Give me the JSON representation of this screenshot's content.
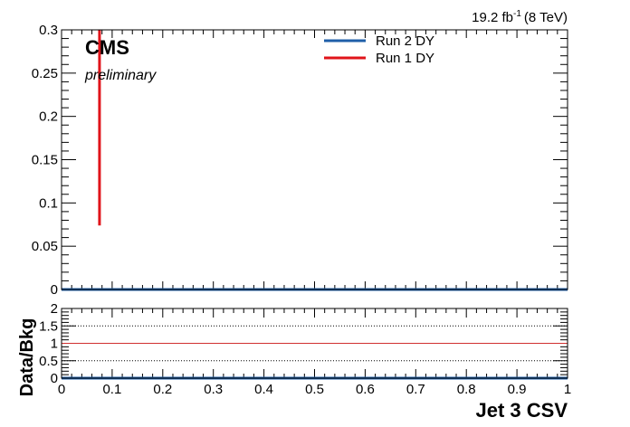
{
  "header": {
    "lumi_prefix": "19.2 fb",
    "lumi_exp": "-1",
    "lumi_suffix": "(8 TeV)"
  },
  "chart_data": [
    {
      "type": "line",
      "panel": "main",
      "experiment_label": "CMS",
      "status_label": "preliminary",
      "xlim": [
        0,
        1
      ],
      "ylim": [
        0,
        0.3
      ],
      "yticks": [
        0,
        0.05,
        0.1,
        0.15,
        0.2,
        0.25,
        0.3
      ],
      "ytick_labels": [
        "0",
        "0.05",
        "0.1",
        "0.15",
        "0.2",
        "0.25",
        "0.3"
      ],
      "legend_position": "top-center",
      "series": [
        {
          "name": "Run 2 DY",
          "color": "#1f5fa8",
          "x": [
            0.0,
            1.0
          ],
          "y": [
            0.0,
            0.0
          ]
        },
        {
          "name": "Run 1 DY",
          "color": "#e0141a",
          "x": [
            0.075
          ],
          "y": [
            0.187
          ],
          "yerr_low": [
            0.113
          ],
          "yerr_high": [
            0.113
          ]
        }
      ]
    },
    {
      "type": "line",
      "panel": "ratio",
      "ylabel": "Data/Bkg",
      "xlabel": "Jet 3 CSV",
      "xlim": [
        0,
        1
      ],
      "ylim": [
        0,
        2
      ],
      "xticks": [
        0,
        0.1,
        0.2,
        0.3,
        0.4,
        0.5,
        0.6,
        0.7,
        0.8,
        0.9,
        1
      ],
      "xtick_labels": [
        "0",
        "0.1",
        "0.2",
        "0.3",
        "0.4",
        "0.5",
        "0.6",
        "0.7",
        "0.8",
        "0.9",
        "1"
      ],
      "yticks": [
        0,
        0.5,
        1,
        1.5,
        2
      ],
      "ytick_labels": [
        "0",
        "0.5",
        "1",
        "1.5",
        "2"
      ],
      "dotted_gridlines": [
        0.5,
        1.5
      ],
      "reference_line": {
        "y": 1,
        "color": "#d03030"
      },
      "series": [
        {
          "name": "",
          "color": "#1f5fa8",
          "x": [
            0.0,
            1.0
          ],
          "y": [
            0.0,
            0.0
          ]
        }
      ]
    }
  ]
}
